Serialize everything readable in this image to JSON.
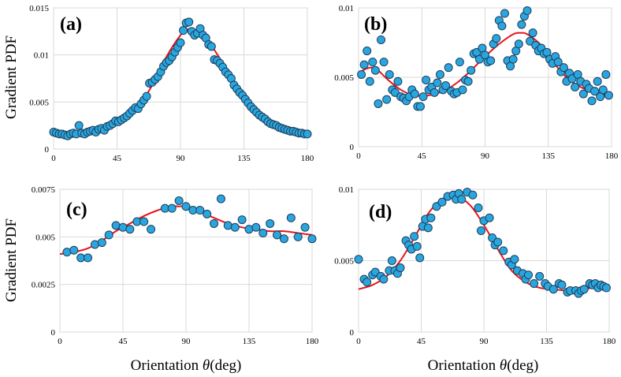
{
  "figure": {
    "ylabel": "Gradient PDF",
    "xlabel_prefix": "Orientation ",
    "xlabel_symbol": "θ",
    "xlabel_suffix": "(deg)"
  },
  "colors": {
    "points": "#2aa6df",
    "point_edge": "#1f3e5a",
    "fit": "#e8141c"
  },
  "chart_data": [
    {
      "id": "a",
      "label": "(a)",
      "type": "scatter",
      "xlim": [
        0,
        180
      ],
      "ylim": [
        0,
        0.015
      ],
      "xticks": [
        0,
        45,
        90,
        135,
        180
      ],
      "xtick_labels": [
        "0",
        "45",
        "90",
        "135",
        "180"
      ],
      "yticks": [
        0,
        0.005,
        0.01,
        0.015
      ],
      "ytick_labels": [
        "0",
        "0.005",
        "0.01",
        "0.015"
      ],
      "points": {
        "x": [
          0,
          2,
          4,
          6,
          8,
          10,
          12,
          14,
          16,
          18,
          20,
          22,
          24,
          26,
          28,
          30,
          32,
          34,
          36,
          38,
          40,
          42,
          44,
          46,
          48,
          50,
          52,
          54,
          56,
          58,
          60,
          62,
          64,
          66,
          68,
          70,
          72,
          74,
          76,
          78,
          80,
          82,
          84,
          86,
          88,
          90,
          92,
          94,
          96,
          98,
          100,
          102,
          104,
          106,
          108,
          110,
          112,
          114,
          116,
          118,
          120,
          122,
          124,
          126,
          128,
          130,
          132,
          134,
          136,
          138,
          140,
          142,
          144,
          146,
          148,
          150,
          152,
          154,
          156,
          158,
          160,
          162,
          164,
          166,
          168,
          170,
          172,
          174,
          176,
          178,
          180
        ],
        "y": [
          0.0018,
          0.0017,
          0.0016,
          0.0016,
          0.0015,
          0.0014,
          0.0016,
          0.0017,
          0.0016,
          0.0025,
          0.0017,
          0.0016,
          0.0018,
          0.0019,
          0.002,
          0.0018,
          0.0021,
          0.0022,
          0.002,
          0.0024,
          0.0025,
          0.0027,
          0.003,
          0.0029,
          0.0031,
          0.0033,
          0.0035,
          0.0038,
          0.0041,
          0.0044,
          0.0043,
          0.0048,
          0.0052,
          0.0056,
          0.007,
          0.0071,
          0.0074,
          0.0077,
          0.0082,
          0.0088,
          0.0092,
          0.0094,
          0.0098,
          0.0103,
          0.0108,
          0.0113,
          0.0126,
          0.0134,
          0.0135,
          0.0125,
          0.0121,
          0.0123,
          0.0128,
          0.0121,
          0.0118,
          0.0111,
          0.0109,
          0.0095,
          0.0094,
          0.0091,
          0.0087,
          0.0082,
          0.0079,
          0.0075,
          0.0068,
          0.0064,
          0.006,
          0.0057,
          0.0053,
          0.0049,
          0.0045,
          0.0042,
          0.0039,
          0.0036,
          0.0034,
          0.0032,
          0.0029,
          0.0027,
          0.0026,
          0.0025,
          0.0023,
          0.0022,
          0.0021,
          0.002,
          0.0019,
          0.0019,
          0.0018,
          0.0017,
          0.0017,
          0.0016,
          0.0016
        ]
      },
      "fit": {
        "x": [
          0,
          10,
          20,
          30,
          40,
          50,
          60,
          70,
          80,
          90,
          95,
          100,
          110,
          120,
          130,
          140,
          150,
          160,
          170,
          180
        ],
        "y": [
          0.0017,
          0.0017,
          0.0018,
          0.0021,
          0.0025,
          0.0032,
          0.0045,
          0.0068,
          0.0098,
          0.0121,
          0.0127,
          0.0127,
          0.0114,
          0.0091,
          0.0066,
          0.0045,
          0.0032,
          0.0025,
          0.002,
          0.0017
        ]
      }
    },
    {
      "id": "b",
      "label": "(b)",
      "type": "scatter",
      "xlim": [
        0,
        180
      ],
      "ylim": [
        0,
        0.01
      ],
      "xticks": [
        0,
        45,
        90,
        135,
        180
      ],
      "xtick_labels": [
        "0",
        "45",
        "90",
        "135",
        "180"
      ],
      "yticks": [
        0,
        0.005,
        0.01
      ],
      "ytick_labels": [
        "0",
        "0.005",
        "0.01"
      ],
      "points": {
        "x": [
          2,
          4,
          6,
          8,
          10,
          12,
          14,
          16,
          18,
          20,
          22,
          24,
          26,
          28,
          30,
          32,
          34,
          36,
          38,
          40,
          42,
          44,
          46,
          48,
          50,
          52,
          54,
          56,
          58,
          60,
          62,
          64,
          66,
          68,
          70,
          72,
          74,
          76,
          78,
          80,
          82,
          84,
          86,
          88,
          90,
          92,
          94,
          96,
          98,
          100,
          102,
          104,
          106,
          108,
          110,
          112,
          114,
          116,
          118,
          120,
          122,
          124,
          126,
          128,
          130,
          132,
          134,
          136,
          138,
          140,
          142,
          144,
          146,
          148,
          150,
          152,
          154,
          156,
          158,
          160,
          162,
          164,
          166,
          168,
          170,
          172,
          174,
          176,
          178
        ],
        "y": [
          0.0052,
          0.0059,
          0.0069,
          0.0047,
          0.0061,
          0.0055,
          0.0031,
          0.0077,
          0.0061,
          0.0034,
          0.0052,
          0.0041,
          0.0039,
          0.0047,
          0.0036,
          0.0035,
          0.0033,
          0.0036,
          0.0041,
          0.0038,
          0.0029,
          0.0029,
          0.0036,
          0.0048,
          0.0041,
          0.0043,
          0.0039,
          0.0046,
          0.0052,
          0.0041,
          0.0044,
          0.0057,
          0.004,
          0.0038,
          0.0039,
          0.0061,
          0.0041,
          0.0048,
          0.0047,
          0.0055,
          0.0067,
          0.0068,
          0.0063,
          0.0071,
          0.0066,
          0.0061,
          0.0062,
          0.0074,
          0.0078,
          0.0091,
          0.0087,
          0.0096,
          0.0062,
          0.0058,
          0.0063,
          0.0069,
          0.0074,
          0.0088,
          0.0094,
          0.0098,
          0.0076,
          0.0082,
          0.0073,
          0.0069,
          0.0071,
          0.0067,
          0.0068,
          0.0063,
          0.006,
          0.0065,
          0.0061,
          0.0054,
          0.0057,
          0.0047,
          0.0053,
          0.0049,
          0.0043,
          0.0052,
          0.0047,
          0.0038,
          0.0045,
          0.0042,
          0.0033,
          0.004,
          0.0047,
          0.0036,
          0.0041,
          0.0052,
          0.0037
        ]
      },
      "fit": {
        "x": [
          0,
          5,
          10,
          15,
          20,
          30,
          40,
          50,
          60,
          70,
          80,
          90,
          100,
          110,
          115,
          120,
          130,
          140,
          150,
          160,
          170,
          180
        ],
        "y": [
          0.0053,
          0.0056,
          0.0057,
          0.0054,
          0.0049,
          0.0041,
          0.0037,
          0.0037,
          0.004,
          0.0046,
          0.0055,
          0.0065,
          0.0074,
          0.0081,
          0.0082,
          0.0081,
          0.0073,
          0.0059,
          0.0048,
          0.0042,
          0.0039,
          0.0037
        ]
      }
    },
    {
      "id": "c",
      "label": "(c)",
      "type": "scatter",
      "xlim": [
        0,
        180
      ],
      "ylim": [
        0,
        0.0075
      ],
      "xticks": [
        0,
        45,
        90,
        135,
        180
      ],
      "xtick_labels": [
        "0",
        "45",
        "90",
        "135",
        "180"
      ],
      "yticks": [
        0,
        0.0025,
        0.005,
        0.0075
      ],
      "ytick_labels": [
        "0",
        "0.0025",
        "0.005",
        "0.0075"
      ],
      "points": {
        "x": [
          5,
          10,
          15,
          20,
          25,
          30,
          35,
          40,
          45,
          50,
          55,
          60,
          65,
          75,
          80,
          85,
          90,
          95,
          100,
          105,
          110,
          115,
          120,
          125,
          130,
          135,
          140,
          145,
          150,
          155,
          160,
          165,
          170,
          175,
          180
        ],
        "y": [
          0.0042,
          0.0043,
          0.0039,
          0.0039,
          0.0046,
          0.0047,
          0.0051,
          0.0056,
          0.0055,
          0.0054,
          0.0058,
          0.0058,
          0.0054,
          0.0065,
          0.0065,
          0.0069,
          0.0066,
          0.0064,
          0.0064,
          0.0062,
          0.0057,
          0.007,
          0.0056,
          0.0055,
          0.0059,
          0.0054,
          0.0055,
          0.0052,
          0.0057,
          0.0051,
          0.0049,
          0.006,
          0.005,
          0.0055,
          0.0049
        ]
      },
      "fit": {
        "x": [
          0,
          10,
          20,
          30,
          40,
          50,
          60,
          70,
          80,
          85,
          90,
          100,
          110,
          120,
          130,
          140,
          150,
          160,
          170,
          180
        ],
        "y": [
          0.0041,
          0.0042,
          0.0044,
          0.0048,
          0.0053,
          0.0057,
          0.0061,
          0.0064,
          0.0066,
          0.0066,
          0.0066,
          0.0063,
          0.006,
          0.0057,
          0.0055,
          0.0054,
          0.0053,
          0.0053,
          0.0052,
          0.0051
        ]
      }
    },
    {
      "id": "d",
      "label": "(d)",
      "type": "scatter",
      "xlim": [
        0,
        180
      ],
      "ylim": [
        0,
        0.01
      ],
      "xticks": [
        0,
        45,
        90,
        135,
        180
      ],
      "xtick_labels": [
        "0",
        "45",
        "90",
        "135",
        "180"
      ],
      "yticks": [
        0,
        0.005,
        0.01
      ],
      "ytick_labels": [
        "0",
        "0.005",
        "0.01"
      ],
      "points": {
        "x": [
          0,
          4,
          6,
          10,
          12,
          16,
          18,
          22,
          24,
          26,
          28,
          30,
          34,
          36,
          38,
          40,
          42,
          44,
          46,
          48,
          50,
          52,
          56,
          60,
          64,
          68,
          70,
          72,
          74,
          78,
          82,
          86,
          88,
          90,
          94,
          96,
          98,
          100,
          104,
          108,
          110,
          112,
          114,
          118,
          120,
          122,
          126,
          130,
          134,
          136,
          140,
          144,
          146,
          150,
          152,
          156,
          158,
          160,
          162,
          166,
          168,
          170,
          172,
          174,
          176,
          178
        ],
        "y": [
          0.0051,
          0.0037,
          0.0035,
          0.004,
          0.0042,
          0.0039,
          0.0037,
          0.0043,
          0.005,
          0.0043,
          0.0041,
          0.0045,
          0.0064,
          0.0061,
          0.0058,
          0.0067,
          0.006,
          0.0052,
          0.0074,
          0.0079,
          0.0073,
          0.008,
          0.0088,
          0.0091,
          0.0095,
          0.0096,
          0.0093,
          0.0097,
          0.0093,
          0.0098,
          0.0096,
          0.0087,
          0.0071,
          0.0078,
          0.008,
          0.0066,
          0.0061,
          0.0063,
          0.0057,
          0.0049,
          0.0047,
          0.0051,
          0.0043,
          0.0041,
          0.0037,
          0.004,
          0.0034,
          0.0039,
          0.0034,
          0.0032,
          0.003,
          0.0034,
          0.0033,
          0.0028,
          0.0029,
          0.0029,
          0.0027,
          0.0029,
          0.003,
          0.0034,
          0.0033,
          0.0034,
          0.0031,
          0.0033,
          0.0032,
          0.0031
        ]
      },
      "fit": {
        "x": [
          0,
          10,
          20,
          30,
          40,
          50,
          60,
          70,
          80,
          90,
          100,
          110,
          120,
          130,
          140,
          150,
          160,
          170,
          180
        ],
        "y": [
          0.003,
          0.0033,
          0.0039,
          0.005,
          0.0066,
          0.0083,
          0.0093,
          0.0095,
          0.0089,
          0.0075,
          0.0058,
          0.0043,
          0.0035,
          0.0031,
          0.003,
          0.0029,
          0.003,
          0.0031,
          0.0031
        ]
      }
    }
  ]
}
